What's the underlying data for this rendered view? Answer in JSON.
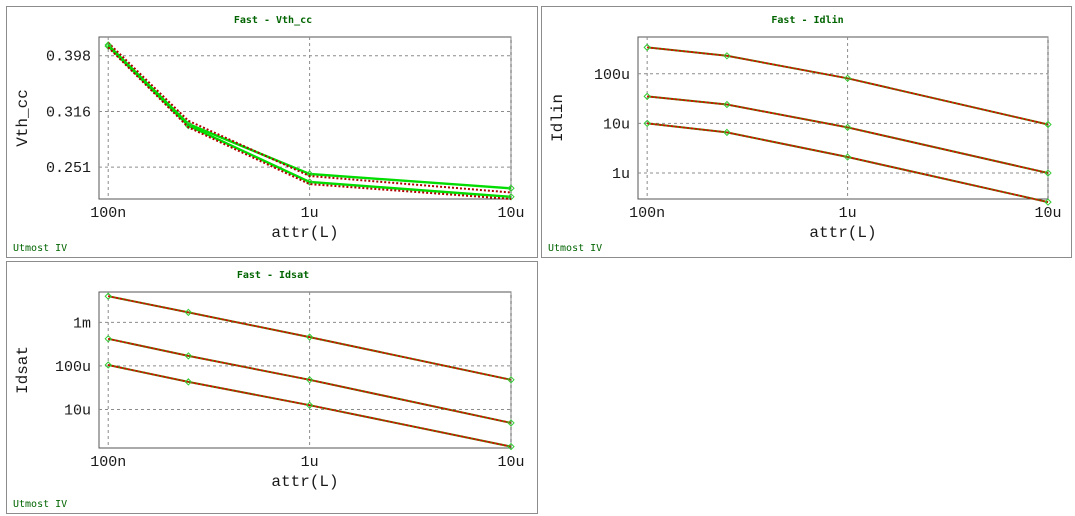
{
  "chart_data": [
    {
      "type": "line",
      "title": "Fast - Vth_cc",
      "xlabel": "attr(L)",
      "ylabel": "Vth_cc",
      "brand": "Utmost IV",
      "x_scale": "log",
      "y_scale": "log",
      "xlim": [
        9e-08,
        1e-05
      ],
      "ylim": [
        0.22,
        0.43
      ],
      "x_ticks": [
        {
          "value": 1e-07,
          "label": "100n"
        },
        {
          "value": 1e-06,
          "label": "1u"
        },
        {
          "value": 1e-05,
          "label": "10u"
        }
      ],
      "y_ticks": [
        {
          "value": 0.251,
          "label": "0.251"
        },
        {
          "value": 0.316,
          "label": "0.316"
        },
        {
          "value": 0.398,
          "label": "0.398"
        }
      ],
      "x": [
        1e-07,
        2.5e-07,
        1e-06,
        1e-05
      ],
      "series": [
        {
          "color": "#00dd00",
          "values": [
            0.416,
            0.3,
            0.244,
            0.23
          ],
          "marker": "diamond"
        },
        {
          "color": "#cc0000",
          "values": [
            0.42,
            0.304,
            0.242,
            0.226
          ],
          "marker": "none"
        },
        {
          "color": "#00dd00",
          "values": [
            0.414,
            0.298,
            0.236,
            0.222
          ],
          "marker": "diamond"
        },
        {
          "color": "#cc0000",
          "values": [
            0.412,
            0.296,
            0.234,
            0.22
          ],
          "marker": "none"
        }
      ],
      "grid": true
    },
    {
      "type": "line",
      "title": "Fast - Idlin",
      "xlabel": "attr(L)",
      "ylabel": "Idlin",
      "brand": "Utmost IV",
      "x_scale": "log",
      "y_scale": "log",
      "xlim": [
        9e-08,
        1e-05
      ],
      "ylim": [
        3e-07,
        0.00055
      ],
      "x_ticks": [
        {
          "value": 1e-07,
          "label": "100n"
        },
        {
          "value": 1e-06,
          "label": "1u"
        },
        {
          "value": 1e-05,
          "label": "10u"
        }
      ],
      "y_ticks": [
        {
          "value": 1e-06,
          "label": "1u"
        },
        {
          "value": 1e-05,
          "label": "10u"
        },
        {
          "value": 0.0001,
          "label": "100u"
        }
      ],
      "x": [
        1e-07,
        2.5e-07,
        1e-06,
        1e-05
      ],
      "series": [
        {
          "color": "#cc0000",
          "values": [
            0.00034,
            0.00023,
            8.1e-05,
            9.5e-06
          ],
          "marker": "diamond"
        },
        {
          "color": "#cc0000",
          "values": [
            3.5e-05,
            2.4e-05,
            8.3e-06,
            1e-06
          ],
          "marker": "diamond"
        },
        {
          "color": "#cc0000",
          "values": [
            1e-05,
            6.6e-06,
            2.1e-06,
            2.6e-07
          ],
          "marker": "diamond"
        }
      ],
      "grid": true
    },
    {
      "type": "line",
      "title": "Fast - Idsat",
      "xlabel": "attr(L)",
      "ylabel": "Idsat",
      "brand": "Utmost IV",
      "x_scale": "log",
      "y_scale": "log",
      "xlim": [
        9e-08,
        1e-05
      ],
      "ylim": [
        1.3e-06,
        0.005
      ],
      "x_ticks": [
        {
          "value": 1e-07,
          "label": "100n"
        },
        {
          "value": 1e-06,
          "label": "1u"
        },
        {
          "value": 1e-05,
          "label": "10u"
        }
      ],
      "y_ticks": [
        {
          "value": 1e-05,
          "label": "10u"
        },
        {
          "value": 0.0001,
          "label": "100u"
        },
        {
          "value": 0.001,
          "label": "1m"
        }
      ],
      "x": [
        1e-07,
        2.5e-07,
        1e-06,
        1e-05
      ],
      "series": [
        {
          "color": "#cc0000",
          "values": [
            0.004,
            0.0017,
            0.00046,
            4.8e-05
          ],
          "marker": "diamond"
        },
        {
          "color": "#cc0000",
          "values": [
            0.00042,
            0.00017,
            4.8e-05,
            4.9e-06
          ],
          "marker": "diamond"
        },
        {
          "color": "#cc0000",
          "values": [
            0.000105,
            4.3e-05,
            1.25e-05,
            1.4e-06
          ],
          "marker": "diamond"
        }
      ],
      "grid": true
    }
  ]
}
